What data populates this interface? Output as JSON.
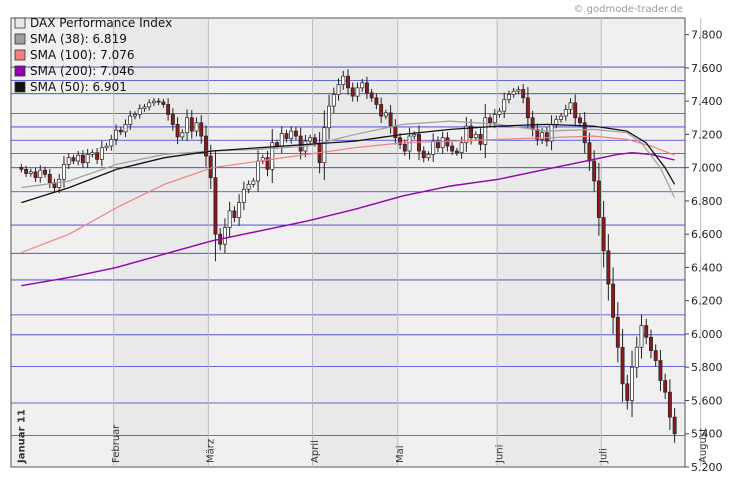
{
  "watermark": "© godmode-trader.de",
  "chart_data": {
    "type": "candlestick",
    "title": "",
    "ylim": [
      5200,
      7900
    ],
    "y_ticks": [
      {
        "value": 5200,
        "label": "5.200"
      },
      {
        "value": 5400,
        "label": "5.400"
      },
      {
        "value": 5600,
        "label": "5.600"
      },
      {
        "value": 5800,
        "label": "5.800"
      },
      {
        "value": 6000,
        "label": "6.000"
      },
      {
        "value": 6200,
        "label": "6.200"
      },
      {
        "value": 6400,
        "label": "6.400"
      },
      {
        "value": 6600,
        "label": "6.600"
      },
      {
        "value": 6800,
        "label": "6.800"
      },
      {
        "value": 7000,
        "label": "7.000"
      },
      {
        "value": 7200,
        "label": "7.200"
      },
      {
        "value": 7400,
        "label": "7.400"
      },
      {
        "value": 7600,
        "label": "7.600"
      },
      {
        "value": 7800,
        "label": "7.800"
      }
    ],
    "x_ticks": [
      {
        "index": 0,
        "label": "Januar 11",
        "bold": true
      },
      {
        "index": 20,
        "label": "Februar",
        "bold": false
      },
      {
        "index": 40,
        "label": "März",
        "bold": false
      },
      {
        "index": 62,
        "label": "April",
        "bold": false
      },
      {
        "index": 80,
        "label": "Mai",
        "bold": false
      },
      {
        "index": 101,
        "label": "Juni",
        "bold": false
      },
      {
        "index": 123,
        "label": "Juli",
        "bold": false
      },
      {
        "index": 144,
        "label": "August",
        "bold": false
      }
    ],
    "fib_lines": [
      5390,
      5585,
      5805,
      5995,
      6115,
      6325,
      6485,
      6655,
      6855,
      7000,
      7085,
      7165,
      7245,
      7325,
      7445,
      7525,
      7605
    ],
    "legend": [
      {
        "label": "DAX Performance Index",
        "color": "#e8e8e8"
      },
      {
        "label": "SMA (38): 6.819",
        "color": "#a0a0a0"
      },
      {
        "label": "SMA (100): 7.076",
        "color": "#f08080"
      },
      {
        "label": "SMA (200): 7.046",
        "color": "#9400b0"
      },
      {
        "label": "SMA (50): 6.901",
        "color": "#111111"
      }
    ],
    "colors": {
      "up": "#ffffff",
      "down": "#8b1a1a",
      "wick": "#222222",
      "grid": "#3a3ad0",
      "plot_bg": "#f0f0f0"
    },
    "closes": [
      6990,
      6965,
      6975,
      6940,
      6985,
      6960,
      6910,
      6880,
      6930,
      7020,
      7060,
      7040,
      7075,
      7030,
      7080,
      7090,
      7050,
      7120,
      7130,
      7170,
      7225,
      7215,
      7260,
      7310,
      7320,
      7355,
      7365,
      7390,
      7400,
      7395,
      7380,
      7320,
      7260,
      7185,
      7210,
      7300,
      7220,
      7270,
      7190,
      7070,
      6940,
      6600,
      6540,
      6640,
      6740,
      6700,
      6790,
      6870,
      6900,
      6920,
      7040,
      7060,
      6990,
      7150,
      7130,
      7205,
      7175,
      7220,
      7190,
      7100,
      7160,
      7180,
      7150,
      7030,
      7240,
      7370,
      7440,
      7500,
      7550,
      7480,
      7430,
      7480,
      7510,
      7450,
      7420,
      7380,
      7310,
      7330,
      7250,
      7180,
      7140,
      7100,
      7190,
      7200,
      7100,
      7060,
      7080,
      7160,
      7120,
      7180,
      7130,
      7100,
      7090,
      7150,
      7250,
      7180,
      7200,
      7140,
      7300,
      7270,
      7320,
      7340,
      7410,
      7440,
      7460,
      7470,
      7420,
      7300,
      7230,
      7170,
      7210,
      7160,
      7260,
      7290,
      7310,
      7350,
      7390,
      7300,
      7270,
      7150,
      7040,
      6920,
      6700,
      6500,
      6300,
      6100,
      5920,
      5700,
      5600,
      5800,
      5920,
      6050,
      5980,
      5900,
      5840,
      5720,
      5650,
      5500,
      5400
    ],
    "sma38_pts": [
      [
        0,
        6880
      ],
      [
        10,
        6920
      ],
      [
        20,
        7020
      ],
      [
        30,
        7080
      ],
      [
        40,
        7100
      ],
      [
        50,
        7110
      ],
      [
        60,
        7130
      ],
      [
        70,
        7200
      ],
      [
        80,
        7260
      ],
      [
        90,
        7280
      ],
      [
        100,
        7260
      ],
      [
        110,
        7220
      ],
      [
        120,
        7230
      ],
      [
        127,
        7210
      ],
      [
        130,
        7150
      ],
      [
        134,
        7000
      ],
      [
        137,
        6820
      ]
    ],
    "sma50_pts": [
      [
        0,
        6790
      ],
      [
        10,
        6880
      ],
      [
        20,
        6990
      ],
      [
        30,
        7060
      ],
      [
        40,
        7100
      ],
      [
        50,
        7120
      ],
      [
        60,
        7140
      ],
      [
        70,
        7160
      ],
      [
        80,
        7200
      ],
      [
        90,
        7230
      ],
      [
        100,
        7250
      ],
      [
        110,
        7260
      ],
      [
        120,
        7250
      ],
      [
        127,
        7220
      ],
      [
        131,
        7150
      ],
      [
        135,
        7000
      ],
      [
        137,
        6900
      ]
    ],
    "sma100_pts": [
      [
        0,
        6490
      ],
      [
        10,
        6600
      ],
      [
        20,
        6760
      ],
      [
        30,
        6900
      ],
      [
        40,
        7000
      ],
      [
        50,
        7040
      ],
      [
        60,
        7080
      ],
      [
        70,
        7120
      ],
      [
        80,
        7150
      ],
      [
        90,
        7160
      ],
      [
        100,
        7170
      ],
      [
        110,
        7180
      ],
      [
        120,
        7190
      ],
      [
        127,
        7170
      ],
      [
        132,
        7130
      ],
      [
        137,
        7075
      ]
    ],
    "sma200_pts": [
      [
        0,
        6290
      ],
      [
        10,
        6340
      ],
      [
        20,
        6400
      ],
      [
        30,
        6480
      ],
      [
        40,
        6560
      ],
      [
        50,
        6620
      ],
      [
        60,
        6680
      ],
      [
        70,
        6750
      ],
      [
        80,
        6830
      ],
      [
        90,
        6890
      ],
      [
        100,
        6930
      ],
      [
        110,
        6990
      ],
      [
        120,
        7050
      ],
      [
        125,
        7080
      ],
      [
        128,
        7090
      ],
      [
        132,
        7080
      ],
      [
        137,
        7046
      ]
    ]
  }
}
